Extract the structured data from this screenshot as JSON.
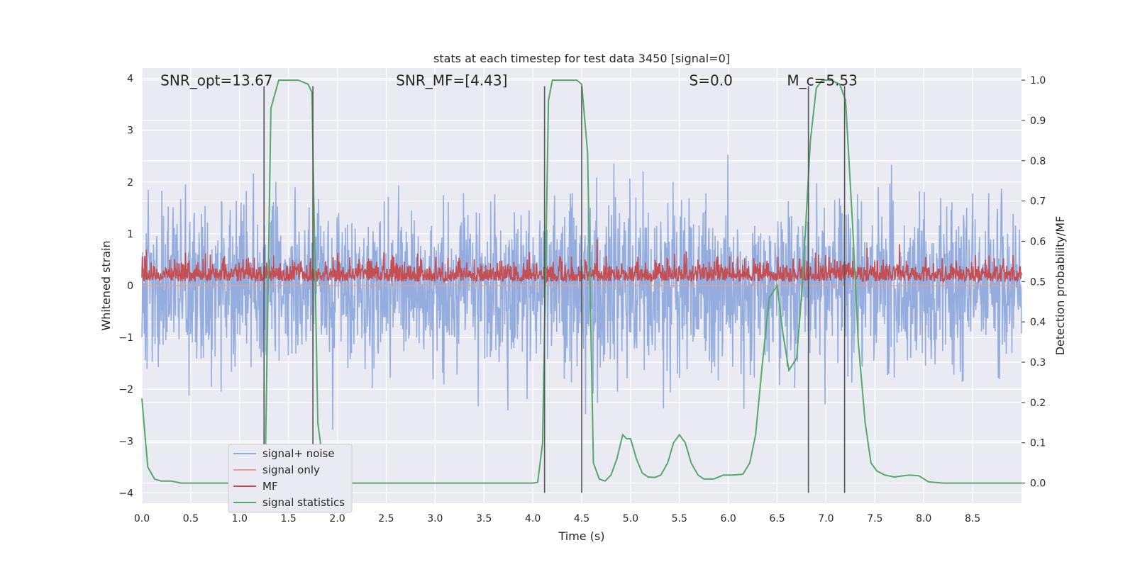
{
  "chart_data": {
    "type": "line",
    "title": "stats at each timestep for test data 3450 [signal=0]",
    "xlabel": "Time (s)",
    "ylabel_left": "Whitened strain",
    "ylabel_right": "Detection probability/MF",
    "xlim": [
      0.0,
      9.0
    ],
    "ylim_left": [
      -4.2,
      4.2
    ],
    "ylim_right": [
      -0.05,
      1.03
    ],
    "xticks": [
      "0.0",
      "0.5",
      "1.0",
      "1.5",
      "2.0",
      "2.5",
      "3.0",
      "3.5",
      "4.0",
      "4.5",
      "5.0",
      "5.5",
      "6.0",
      "6.5",
      "7.0",
      "7.5",
      "8.0",
      "8.5"
    ],
    "xtick_values": [
      0.0,
      0.5,
      1.0,
      1.5,
      2.0,
      2.5,
      3.0,
      3.5,
      4.0,
      4.5,
      5.0,
      5.5,
      6.0,
      6.5,
      7.0,
      7.5,
      8.0,
      8.5
    ],
    "yticks_left": [
      "4",
      "3",
      "2",
      "1",
      "0",
      "−1",
      "−2",
      "−3",
      "−4"
    ],
    "ytick_values_left": [
      4,
      3,
      2,
      1,
      0,
      -1,
      -2,
      -3,
      -4
    ],
    "yticks_right": [
      "1.0",
      "0.9",
      "0.8",
      "0.7",
      "0.6",
      "0.5",
      "0.4",
      "0.3",
      "0.2",
      "0.1",
      "0.0"
    ],
    "ytick_values_right": [
      1.0,
      0.9,
      0.8,
      0.7,
      0.6,
      0.5,
      0.4,
      0.3,
      0.2,
      0.1,
      0.0
    ],
    "grid": true,
    "legend_position": "lower-left",
    "legend": [
      "signal+ noise",
      "signal only",
      "MF",
      "signal statistics"
    ],
    "colors": {
      "signal_noise": "#8faadc",
      "signal_only": "#e8a08a",
      "mf": "#c44e52",
      "signal_statistics": "#55a868",
      "vlines": "#555555",
      "background": "#eaeaf2"
    },
    "annotations": [
      {
        "id": "snr-opt",
        "text": "SNR_opt=13.67",
        "x": 0.19
      },
      {
        "id": "snr-mf",
        "text": "SNR_MF=[4.43]",
        "x": 2.6
      },
      {
        "id": "s-val",
        "text": "S=0.0",
        "x": 5.6
      },
      {
        "id": "mc-val",
        "text": "M_c=5.53",
        "x": 6.6
      }
    ],
    "annotation_y": 4.0,
    "vlines_x": [
      1.25,
      1.75,
      4.12,
      4.5,
      6.82,
      7.19
    ],
    "vline_ylim_left": [
      -4.0,
      3.85
    ],
    "signal_statistics": {
      "name": "signal statistics",
      "x": [
        0.0,
        0.06,
        0.13,
        0.2,
        0.3,
        0.4,
        1.0,
        1.2,
        1.26,
        1.32,
        1.4,
        1.6,
        1.7,
        1.74,
        1.8,
        1.88,
        2.0,
        3.5,
        4.0,
        4.05,
        4.1,
        4.16,
        4.2,
        4.45,
        4.5,
        4.56,
        4.62,
        4.68,
        4.74,
        4.8,
        4.86,
        4.92,
        4.96,
        5.0,
        5.06,
        5.12,
        5.18,
        5.25,
        5.31,
        5.38,
        5.44,
        5.5,
        5.56,
        5.62,
        5.69,
        5.75,
        5.85,
        5.95,
        6.05,
        6.15,
        6.22,
        6.28,
        6.35,
        6.42,
        6.5,
        6.56,
        6.62,
        6.7,
        6.76,
        6.84,
        6.9,
        6.96,
        7.05,
        7.14,
        7.2,
        7.27,
        7.33,
        7.4,
        7.46,
        7.52,
        7.6,
        7.7,
        7.85,
        7.95,
        8.05,
        8.2,
        9.0
      ],
      "values": [
        0.21,
        0.04,
        0.01,
        0.005,
        0.005,
        0.0,
        0.0,
        0.0,
        0.0,
        0.93,
        1.0,
        1.0,
        0.99,
        0.97,
        0.15,
        0.0,
        0.0,
        0.0,
        0.0,
        0.002,
        0.1,
        0.95,
        1.0,
        1.0,
        0.99,
        0.82,
        0.05,
        0.01,
        0.005,
        0.02,
        0.06,
        0.12,
        0.11,
        0.11,
        0.06,
        0.025,
        0.015,
        0.014,
        0.02,
        0.05,
        0.1,
        0.12,
        0.1,
        0.05,
        0.02,
        0.01,
        0.01,
        0.02,
        0.02,
        0.022,
        0.05,
        0.12,
        0.3,
        0.46,
        0.49,
        0.37,
        0.28,
        0.31,
        0.5,
        0.85,
        0.98,
        1.0,
        1.0,
        0.99,
        0.95,
        0.65,
        0.35,
        0.15,
        0.05,
        0.03,
        0.02,
        0.015,
        0.02,
        0.018,
        0.003,
        0.0,
        0.0
      ]
    },
    "signal_noise": {
      "name": "signal+ noise",
      "n_points": 2200,
      "typical_range": [
        -4.0,
        3.8
      ]
    },
    "mf": {
      "name": "MF",
      "n_points": 2200,
      "baseline": 0.5,
      "typical_range": [
        0.5,
        0.6
      ]
    },
    "signal_only": {
      "name": "signal only",
      "baseline": 0.0
    }
  }
}
